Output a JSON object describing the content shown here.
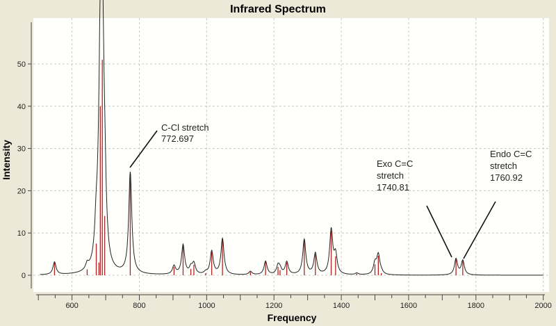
{
  "chart_data": {
    "type": "line",
    "title": "Infrared Spectrum",
    "xlabel": "Frequency",
    "ylabel": "Intensity",
    "xlim": [
      500,
      2000
    ],
    "ylim": [
      -3,
      59
    ],
    "xticks": [
      600,
      800,
      1000,
      1200,
      1400,
      1600,
      1800,
      2000
    ],
    "yticks": [
      0,
      10,
      20,
      30,
      40,
      50
    ],
    "grid": true,
    "colors": {
      "background": "#ECE9D8",
      "plot_bg": "#FFFFFC",
      "curve": "#222222",
      "sticks": "#B22222",
      "grid": "#C8C8C8"
    },
    "sticks": [
      {
        "x": 548,
        "y": 3.0
      },
      {
        "x": 645,
        "y": 1.4
      },
      {
        "x": 672,
        "y": 7.5
      },
      {
        "x": 680,
        "y": 3
      },
      {
        "x": 684,
        "y": 40
      },
      {
        "x": 690,
        "y": 51
      },
      {
        "x": 697,
        "y": 14
      },
      {
        "x": 773,
        "y": 24
      },
      {
        "x": 903,
        "y": 2.0
      },
      {
        "x": 930,
        "y": 7.0
      },
      {
        "x": 953,
        "y": 1.5
      },
      {
        "x": 962,
        "y": 2.5
      },
      {
        "x": 997,
        "y": 0.5
      },
      {
        "x": 1015,
        "y": 5.5
      },
      {
        "x": 1047,
        "y": 8.5
      },
      {
        "x": 1130,
        "y": 0.8
      },
      {
        "x": 1175,
        "y": 3.2
      },
      {
        "x": 1212,
        "y": 2.0
      },
      {
        "x": 1218,
        "y": 1.2
      },
      {
        "x": 1238,
        "y": 3.0
      },
      {
        "x": 1290,
        "y": 8.3
      },
      {
        "x": 1323,
        "y": 5.0
      },
      {
        "x": 1370,
        "y": 10.5
      },
      {
        "x": 1383,
        "y": 4.5
      },
      {
        "x": 1446,
        "y": 0.4
      },
      {
        "x": 1500,
        "y": 2.6
      },
      {
        "x": 1510,
        "y": 4.6
      },
      {
        "x": 1519,
        "y": 0.5
      },
      {
        "x": 1740.81,
        "y": 3.8
      },
      {
        "x": 1760.92,
        "y": 3.4
      }
    ],
    "annotations": [
      {
        "lines": [
          "C-Cl stretch",
          "772.697"
        ],
        "x": 772.697
      },
      {
        "lines": [
          "Exo C=C",
          "stretch",
          "1740.81"
        ],
        "x": 1740.81
      },
      {
        "lines": [
          "Endo C=C",
          "stretch",
          "1760.92"
        ],
        "x": 1760.92
      }
    ]
  }
}
